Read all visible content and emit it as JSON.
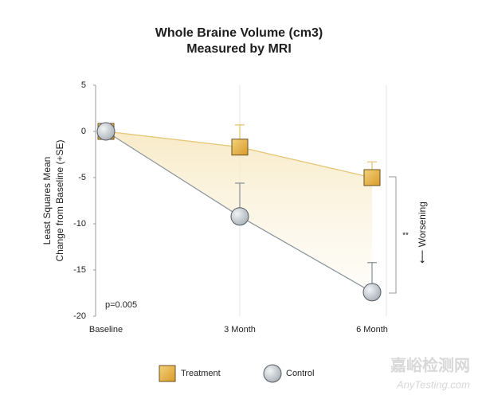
{
  "chart_data": {
    "type": "line",
    "title": [
      "Whole Braine Volume (cm3)",
      "Measured by MRI"
    ],
    "ylabel": [
      "Least Squares Mean",
      "Change from Baseline (+SE)"
    ],
    "categories": [
      "Baseline",
      "3 Month",
      "6 Month"
    ],
    "series": [
      {
        "name": "Treatment",
        "color": "#e8b447",
        "line_color": "#e6c677",
        "marker": "square",
        "values": [
          0,
          -1.7,
          -5.0
        ],
        "errors": [
          null,
          2.4,
          1.7
        ]
      },
      {
        "name": "Control",
        "color": "#c9cfd5",
        "line_color": "#8d979f",
        "marker": "circle",
        "values": [
          0,
          -9.2,
          -17.4
        ],
        "errors": [
          null,
          3.6,
          3.2
        ]
      }
    ],
    "ylim": [
      -20,
      5
    ],
    "yticks": [
      5,
      0,
      -5,
      -10,
      -15,
      -20
    ],
    "annotations": {
      "p_value": "p=0.005",
      "significance": "**",
      "direction": "⟵ Worsening"
    },
    "watermark": [
      "嘉峪检测网",
      "AnyTesting.com"
    ]
  }
}
